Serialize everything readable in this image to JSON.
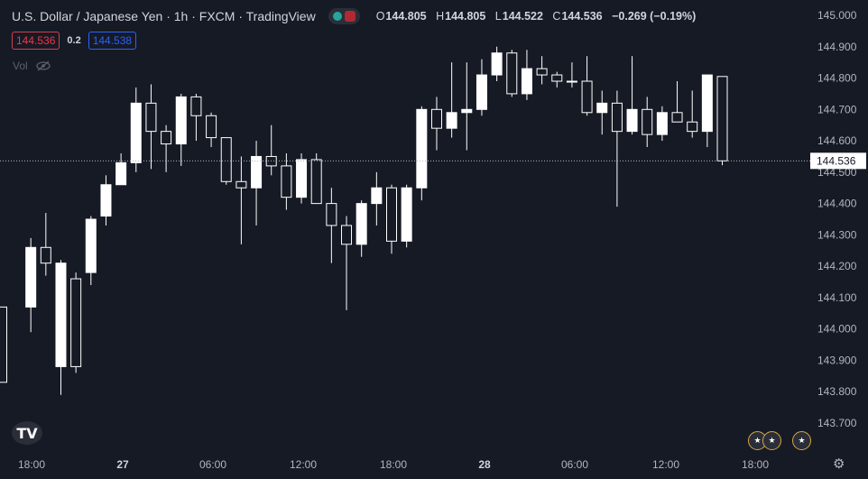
{
  "legend": {
    "title": "U.S. Dollar / Japanese Yen · 1h · FXCM · TradingView",
    "ohlc": [
      {
        "k": "O",
        "v": "144.805"
      },
      {
        "k": "H",
        "v": "144.805"
      },
      {
        "k": "L",
        "v": "144.522"
      },
      {
        "k": "C",
        "v": "144.536"
      }
    ],
    "change": "−0.269 (−0.19%)"
  },
  "trade": {
    "sell": "144.536",
    "spread": "0.2",
    "buy": "144.538"
  },
  "volume_label": "Vol",
  "current_price_label": "144.536",
  "icons": [
    "eye-crossed-icon",
    "tradingview-logo-icon",
    "us-flag-icon",
    "gear-icon"
  ],
  "colors": {
    "background": "#161a25",
    "candle_up": "#ffffff",
    "candle_down": "#161a25",
    "text": "#d1d4dc",
    "sell": "#f23645",
    "buy": "#2962ff"
  },
  "chart_data": {
    "type": "candlestick",
    "y_ticks": [
      "145.000",
      "144.900",
      "144.800",
      "144.700",
      "144.600",
      "144.500",
      "144.400",
      "144.300",
      "144.200",
      "144.100",
      "144.000",
      "143.900",
      "143.800",
      "143.700"
    ],
    "x_ticks": [
      "18:00",
      "27",
      "06:00",
      "12:00",
      "18:00",
      "28",
      "06:00",
      "12:00",
      "18:00"
    ],
    "ylim": [
      143.65,
      145.02
    ],
    "current_price": 144.536,
    "candles": [
      {
        "t": 0,
        "o": 144.07,
        "h": 144.07,
        "l": 143.83,
        "c": 143.83
      },
      {
        "t": 1,
        "o": 144.07,
        "h": 144.29,
        "l": 143.99,
        "c": 144.26
      },
      {
        "t": 2,
        "o": 144.26,
        "h": 144.37,
        "l": 144.17,
        "c": 144.21
      },
      {
        "t": 3,
        "o": 143.88,
        "h": 144.22,
        "l": 143.79,
        "c": 144.21
      },
      {
        "t": 4,
        "o": 144.16,
        "h": 144.18,
        "l": 143.86,
        "c": 143.88
      },
      {
        "t": 5,
        "o": 144.18,
        "h": 144.36,
        "l": 144.14,
        "c": 144.35
      },
      {
        "t": 6,
        "o": 144.36,
        "h": 144.49,
        "l": 144.33,
        "c": 144.46
      },
      {
        "t": 7,
        "o": 144.46,
        "h": 144.56,
        "l": 144.46,
        "c": 144.53
      },
      {
        "t": 8,
        "o": 144.53,
        "h": 144.77,
        "l": 144.5,
        "c": 144.72
      },
      {
        "t": 9,
        "o": 144.72,
        "h": 144.78,
        "l": 144.51,
        "c": 144.63
      },
      {
        "t": 10,
        "o": 144.63,
        "h": 144.65,
        "l": 144.5,
        "c": 144.59
      },
      {
        "t": 11,
        "o": 144.59,
        "h": 144.75,
        "l": 144.52,
        "c": 144.74
      },
      {
        "t": 12,
        "o": 144.74,
        "h": 144.75,
        "l": 144.6,
        "c": 144.68
      },
      {
        "t": 13,
        "o": 144.68,
        "h": 144.69,
        "l": 144.58,
        "c": 144.61
      },
      {
        "t": 14,
        "o": 144.61,
        "h": 144.61,
        "l": 144.46,
        "c": 144.47
      },
      {
        "t": 15,
        "o": 144.47,
        "h": 144.55,
        "l": 144.27,
        "c": 144.45
      },
      {
        "t": 16,
        "o": 144.45,
        "h": 144.6,
        "l": 144.33,
        "c": 144.55
      },
      {
        "t": 17,
        "o": 144.55,
        "h": 144.65,
        "l": 144.49,
        "c": 144.52
      },
      {
        "t": 18,
        "o": 144.52,
        "h": 144.56,
        "l": 144.38,
        "c": 144.42
      },
      {
        "t": 19,
        "o": 144.42,
        "h": 144.56,
        "l": 144.4,
        "c": 144.54
      },
      {
        "t": 20,
        "o": 144.54,
        "h": 144.56,
        "l": 144.4,
        "c": 144.4
      },
      {
        "t": 21,
        "o": 144.4,
        "h": 144.45,
        "l": 144.21,
        "c": 144.33
      },
      {
        "t": 22,
        "o": 144.33,
        "h": 144.36,
        "l": 144.06,
        "c": 144.27
      },
      {
        "t": 23,
        "o": 144.27,
        "h": 144.41,
        "l": 144.23,
        "c": 144.4
      },
      {
        "t": 24,
        "o": 144.4,
        "h": 144.5,
        "l": 144.33,
        "c": 144.45
      },
      {
        "t": 25,
        "o": 144.45,
        "h": 144.46,
        "l": 144.24,
        "c": 144.28
      },
      {
        "t": 26,
        "o": 144.28,
        "h": 144.46,
        "l": 144.26,
        "c": 144.45
      },
      {
        "t": 27,
        "o": 144.45,
        "h": 144.71,
        "l": 144.41,
        "c": 144.7
      },
      {
        "t": 28,
        "o": 144.7,
        "h": 144.74,
        "l": 144.57,
        "c": 144.64
      },
      {
        "t": 29,
        "o": 144.64,
        "h": 144.85,
        "l": 144.61,
        "c": 144.69
      },
      {
        "t": 30,
        "o": 144.69,
        "h": 144.85,
        "l": 144.57,
        "c": 144.7
      },
      {
        "t": 31,
        "o": 144.7,
        "h": 144.86,
        "l": 144.68,
        "c": 144.81
      },
      {
        "t": 32,
        "o": 144.81,
        "h": 144.9,
        "l": 144.79,
        "c": 144.88
      },
      {
        "t": 33,
        "o": 144.88,
        "h": 144.89,
        "l": 144.74,
        "c": 144.75
      },
      {
        "t": 34,
        "o": 144.75,
        "h": 144.89,
        "l": 144.73,
        "c": 144.83
      },
      {
        "t": 35,
        "o": 144.83,
        "h": 144.87,
        "l": 144.78,
        "c": 144.81
      },
      {
        "t": 36,
        "o": 144.81,
        "h": 144.82,
        "l": 144.77,
        "c": 144.79
      },
      {
        "t": 37,
        "o": 144.79,
        "h": 144.85,
        "l": 144.77,
        "c": 144.79
      },
      {
        "t": 38,
        "o": 144.79,
        "h": 144.87,
        "l": 144.68,
        "c": 144.69
      },
      {
        "t": 39,
        "o": 144.69,
        "h": 144.76,
        "l": 144.62,
        "c": 144.72
      },
      {
        "t": 40,
        "o": 144.72,
        "h": 144.76,
        "l": 144.39,
        "c": 144.63
      },
      {
        "t": 41,
        "o": 144.63,
        "h": 144.87,
        "l": 144.62,
        "c": 144.7
      },
      {
        "t": 42,
        "o": 144.7,
        "h": 144.74,
        "l": 144.58,
        "c": 144.62
      },
      {
        "t": 43,
        "o": 144.62,
        "h": 144.71,
        "l": 144.6,
        "c": 144.69
      },
      {
        "t": 44,
        "o": 144.69,
        "h": 144.79,
        "l": 144.66,
        "c": 144.66
      },
      {
        "t": 45,
        "o": 144.66,
        "h": 144.76,
        "l": 144.61,
        "c": 144.63
      },
      {
        "t": 46,
        "o": 144.63,
        "h": 144.81,
        "l": 144.58,
        "c": 144.81
      },
      {
        "t": 47,
        "o": 144.805,
        "h": 144.805,
        "l": 144.522,
        "c": 144.536
      }
    ]
  }
}
